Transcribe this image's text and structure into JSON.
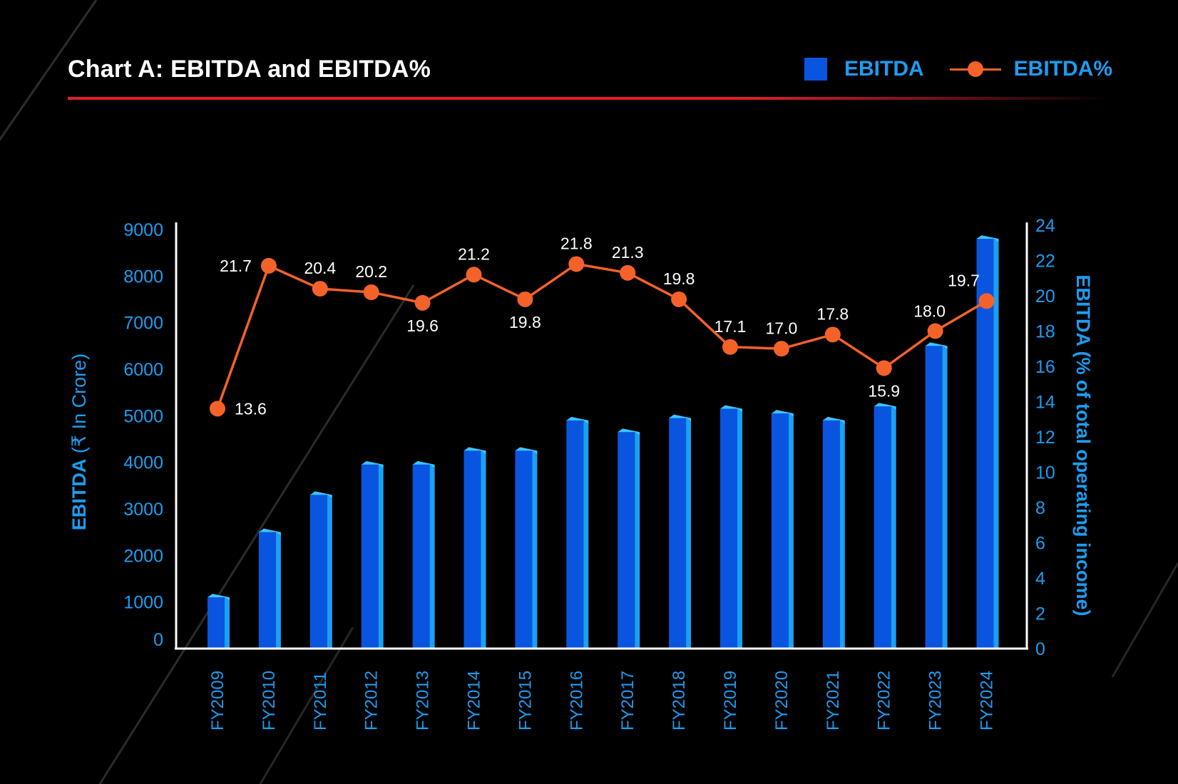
{
  "title": "Chart A: EBITDA and EBITDA%",
  "legend": [
    {
      "name": "EBITDA",
      "kind": "bar",
      "color": "#0a55e0"
    },
    {
      "name": "EBITDA%",
      "kind": "line",
      "color": "#f4622a"
    }
  ],
  "colors": {
    "background": "#000000",
    "bar_front": "#0a55e0",
    "bar_side": "#1aa0f5",
    "bar_top": "#3cc4ff",
    "line": "#f4622a",
    "axis_text": "#1e9cf0",
    "accent_rule": "#e0202a"
  },
  "chart_data": {
    "type": "bar",
    "title": "Chart A: EBITDA and EBITDA%",
    "categories": [
      "FY2009",
      "FY2010",
      "FY2011",
      "FY2012",
      "FY2013",
      "FY2014",
      "FY2015",
      "FY2016",
      "FY2017",
      "FY2018",
      "FY2019",
      "FY2020",
      "FY2021",
      "FY2022",
      "FY2023",
      "FY2024"
    ],
    "series": [
      {
        "name": "EBITDA",
        "type": "bar",
        "axis": "left",
        "values": [
          1100,
          2500,
          3300,
          3950,
          3950,
          4250,
          4250,
          4900,
          4650,
          4950,
          5150,
          5050,
          4900,
          5200,
          6500,
          8800
        ]
      },
      {
        "name": "EBITDA%",
        "type": "line",
        "axis": "right",
        "values": [
          13.6,
          21.7,
          20.4,
          20.2,
          19.6,
          21.2,
          19.8,
          21.8,
          21.3,
          19.8,
          17.1,
          17.0,
          17.8,
          15.9,
          18.0,
          19.7
        ],
        "labels": [
          "13.6",
          "21.7",
          "20.4",
          "20.2",
          "19.6",
          "21.2",
          "19.8",
          "21.8",
          "21.3",
          "19.8",
          "17.1",
          "17.0",
          "17.8",
          "15.9",
          "18.0",
          "19.7"
        ]
      }
    ],
    "y_left": {
      "label_bold": "EBITDA",
      "label_rest": " (₹ In Crore)",
      "ylim": [
        0,
        9000
      ],
      "ticks": [
        "0",
        "1000",
        "2000",
        "3000",
        "4000",
        "5000",
        "6000",
        "7000",
        "8000",
        "9000"
      ]
    },
    "y_right": {
      "label": "EBITDA (% of total operating income)",
      "ylim": [
        0,
        24
      ],
      "ticks": [
        "0",
        "2",
        "4",
        "6",
        "8",
        "10",
        "12",
        "14",
        "16",
        "18",
        "20",
        "22",
        "24"
      ]
    },
    "grid": false,
    "legend_position": "top-right"
  }
}
